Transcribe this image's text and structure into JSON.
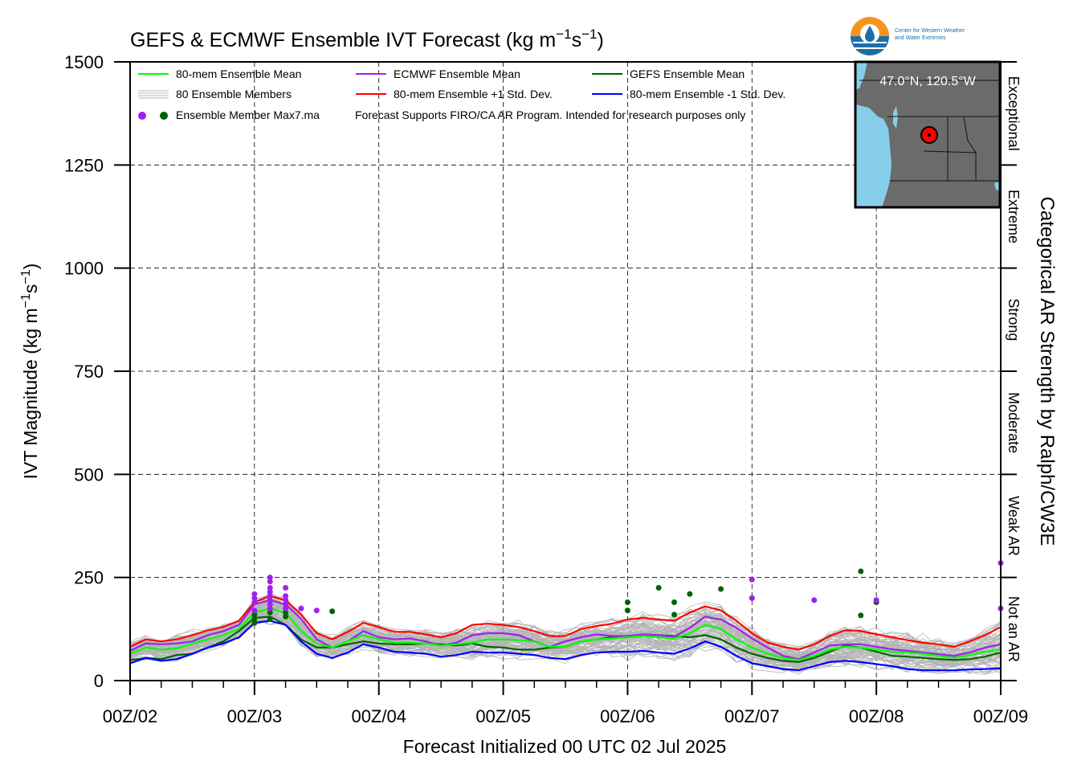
{
  "header": {
    "title_main": "GEFS & ECMWF Ensemble IVT Forecast (kg m",
    "title_sup1": "−1",
    "title_mid": "s",
    "title_sup2": "−1",
    "title_end": ")",
    "logo_text_line1": "Center for Western Weather",
    "logo_text_line2": "and Water Extremes"
  },
  "legend": {
    "mean80": "80-mem Ensemble Mean",
    "members": "80 Ensemble Members",
    "max7": "Ensemble Member Max7.ma",
    "ecmwf_mean": "ECMWF Ensemble Mean",
    "plus_sd": "80-mem Ensemble +1 Std. Dev.",
    "note": "Forecast Supports FIRO/CA AR Program. Intended for research purposes only",
    "gefs_mean": "GEFS Ensemble Mean",
    "minus_sd": "80-mem Ensemble -1 Std. Dev."
  },
  "map_inset": {
    "location": "47.0°N, 120.5°W"
  },
  "colors": {
    "mean80": "#00ff00",
    "ecmwf": "#a020f0",
    "gefs": "#006400",
    "plus_sd": "#ff0000",
    "minus_sd": "#0000ff",
    "members": "#b4b4b4",
    "map_land": "#6b6b6b",
    "map_water": "#87ceeb",
    "marker": "#ff0000"
  },
  "chart_data": {
    "type": "line",
    "title": "GEFS & ECMWF Ensemble IVT Forecast (kg m−1s−1)",
    "xlabel": "Forecast Initialized 00 UTC 02 Jul 2025",
    "ylabel": "IVT Magnitude (kg m−1s−1)",
    "ylabel_main": "IVT Magnitude (kg m",
    "y2label": "Categorical AR Strength by Ralph/CW3E",
    "ylim": [
      0,
      1500
    ],
    "xlim_hours": [
      0,
      168
    ],
    "yticks": [
      "0",
      "250",
      "500",
      "750",
      "1000",
      "1250",
      "1500"
    ],
    "xticks": [
      "00Z/02",
      "00Z/03",
      "00Z/04",
      "00Z/05",
      "00Z/06",
      "00Z/07",
      "00Z/08",
      "00Z/09"
    ],
    "categories_right": [
      "Not an AR",
      "Weak AR",
      "Moderate",
      "Strong",
      "Extreme",
      "Exceptional"
    ],
    "grid": true,
    "legend_position": "top-left",
    "x_hours": [
      0,
      3,
      6,
      9,
      12,
      15,
      18,
      21,
      24,
      27,
      30,
      33,
      36,
      39,
      42,
      45,
      48,
      51,
      54,
      57,
      60,
      63,
      66,
      69,
      72,
      75,
      78,
      81,
      84,
      87,
      90,
      93,
      96,
      99,
      102,
      105,
      108,
      111,
      114,
      117,
      120,
      123,
      126,
      129,
      132,
      135,
      138,
      141,
      144,
      147,
      150,
      153,
      156,
      159,
      162,
      165,
      168
    ],
    "series": [
      {
        "name": "80-mem Ensemble Mean",
        "color": "#00ff00",
        "values": [
          65,
          80,
          75,
          78,
          90,
          100,
          110,
          125,
          165,
          175,
          165,
          120,
          90,
          80,
          95,
          110,
          100,
          92,
          92,
          90,
          85,
          88,
          92,
          100,
          100,
          98,
          95,
          82,
          82,
          95,
          100,
          102,
          105,
          108,
          105,
          102,
          115,
          135,
          125,
          100,
          80,
          65,
          55,
          50,
          60,
          75,
          82,
          80,
          75,
          70,
          68,
          65,
          60,
          55,
          62,
          70,
          75
        ]
      },
      {
        "name": "ECMWF Ensemble Mean",
        "color": "#a020f0",
        "values": [
          72,
          90,
          88,
          90,
          95,
          110,
          120,
          135,
          185,
          195,
          185,
          150,
          100,
          80,
          95,
          120,
          105,
          100,
          102,
          95,
          85,
          92,
          110,
          115,
          115,
          110,
          95,
          82,
          95,
          105,
          112,
          108,
          108,
          112,
          110,
          106,
          128,
          155,
          148,
          128,
          102,
          80,
          60,
          52,
          68,
          85,
          88,
          88,
          82,
          76,
          72,
          68,
          64,
          60,
          68,
          80,
          88
        ]
      },
      {
        "name": "GEFS Ensemble Mean",
        "color": "#006400",
        "values": [
          50,
          55,
          52,
          62,
          65,
          80,
          95,
          120,
          152,
          155,
          135,
          100,
          80,
          80,
          88,
          95,
          90,
          88,
          88,
          90,
          88,
          85,
          90,
          82,
          80,
          75,
          75,
          80,
          82,
          95,
          100,
          105,
          108,
          112,
          110,
          108,
          105,
          110,
          100,
          80,
          65,
          55,
          48,
          45,
          55,
          70,
          85,
          80,
          70,
          60,
          58,
          55,
          52,
          50,
          52,
          58,
          68
        ]
      },
      {
        "name": "80-mem Ensemble +1 Std. Dev.",
        "color": "#ff0000",
        "values": [
          82,
          100,
          95,
          100,
          110,
          122,
          130,
          145,
          190,
          205,
          195,
          160,
          115,
          100,
          118,
          140,
          130,
          118,
          118,
          112,
          105,
          115,
          135,
          138,
          135,
          130,
          120,
          108,
          108,
          125,
          132,
          138,
          148,
          152,
          148,
          145,
          165,
          180,
          170,
          145,
          115,
          92,
          82,
          75,
          88,
          108,
          122,
          120,
          112,
          105,
          98,
          92,
          88,
          82,
          95,
          110,
          130
        ]
      },
      {
        "name": "80-mem Ensemble -1 Std. Dev.",
        "color": "#0000ff",
        "values": [
          42,
          55,
          48,
          52,
          65,
          80,
          90,
          105,
          140,
          145,
          135,
          95,
          65,
          55,
          68,
          88,
          80,
          70,
          68,
          65,
          58,
          62,
          70,
          68,
          68,
          65,
          62,
          55,
          52,
          62,
          68,
          70,
          70,
          72,
          68,
          65,
          78,
          95,
          82,
          60,
          42,
          35,
          28,
          25,
          35,
          45,
          48,
          45,
          40,
          35,
          28,
          25,
          25,
          25,
          27,
          28,
          30
        ]
      }
    ],
    "max7_points": {
      "ecmwf": [
        [
          24,
          170
        ],
        [
          24,
          190
        ],
        [
          24,
          200
        ],
        [
          24,
          210
        ],
        [
          27,
          250
        ],
        [
          27,
          240
        ],
        [
          27,
          225
        ],
        [
          27,
          215
        ],
        [
          27,
          205
        ],
        [
          27,
          195
        ],
        [
          27,
          185
        ],
        [
          27,
          175
        ],
        [
          30,
          225
        ],
        [
          30,
          205
        ],
        [
          30,
          195
        ],
        [
          30,
          185
        ],
        [
          30,
          175
        ],
        [
          33,
          175
        ],
        [
          36,
          170
        ],
        [
          120,
          245
        ],
        [
          120,
          200
        ],
        [
          132,
          195
        ],
        [
          144,
          195
        ],
        [
          168,
          285
        ],
        [
          168,
          175
        ]
      ],
      "gefs": [
        [
          24,
          140
        ],
        [
          24,
          150
        ],
        [
          24,
          160
        ],
        [
          27,
          150
        ],
        [
          27,
          165
        ],
        [
          30,
          155
        ],
        [
          30,
          165
        ],
        [
          39,
          168
        ],
        [
          96,
          190
        ],
        [
          96,
          170
        ],
        [
          102,
          225
        ],
        [
          105,
          190
        ],
        [
          105,
          160
        ],
        [
          108,
          210
        ],
        [
          114,
          222
        ],
        [
          120,
          200
        ],
        [
          141,
          265
        ],
        [
          141,
          158
        ],
        [
          144,
          190
        ]
      ]
    }
  }
}
